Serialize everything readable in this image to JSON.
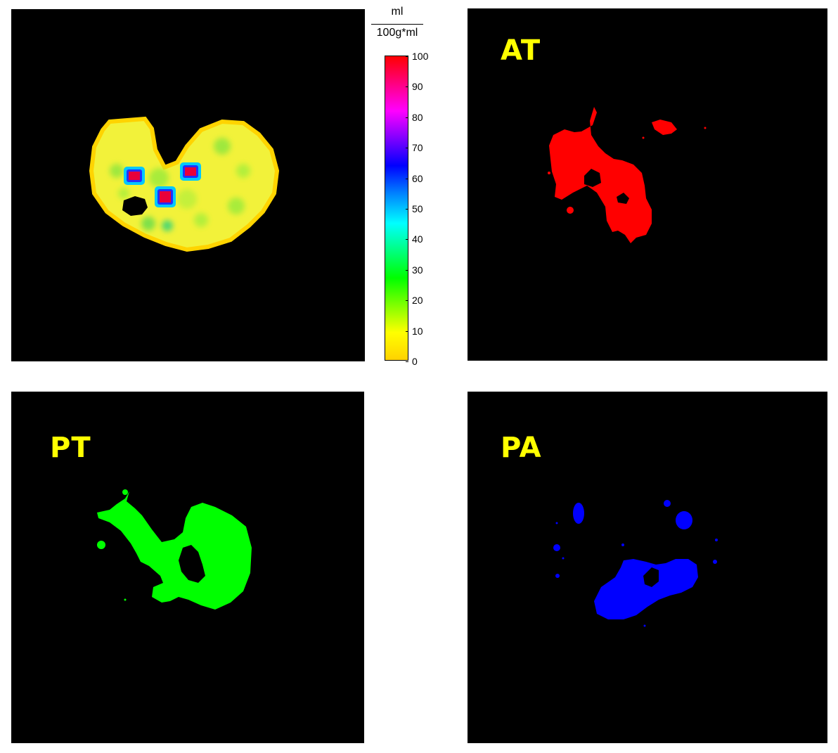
{
  "colorbar": {
    "unit_numerator": "ml",
    "unit_denominator": "100g*ml",
    "ticks": [
      "100",
      "90",
      "80",
      "70",
      "60",
      "50",
      "40",
      "30",
      "20",
      "10",
      "0"
    ],
    "colors_top_to_bottom": [
      "#ff0000",
      "#ff0080",
      "#ff00ff",
      "#8000ff",
      "#0000ff",
      "#0080ff",
      "#00ffff",
      "#00ff80",
      "#00ff00",
      "#80ff00",
      "#ffff00",
      "#ffd200"
    ]
  },
  "panels": {
    "perfusion": {
      "label": ""
    },
    "at": {
      "label": "AT",
      "label_color": "#ffff00",
      "mask_color": "#ff0000"
    },
    "pt": {
      "label": "PT",
      "label_color": "#ffff00",
      "mask_color": "#00ff00"
    },
    "pa": {
      "label": "PA",
      "label_color": "#ffff00",
      "mask_color": "#0000ff"
    }
  }
}
